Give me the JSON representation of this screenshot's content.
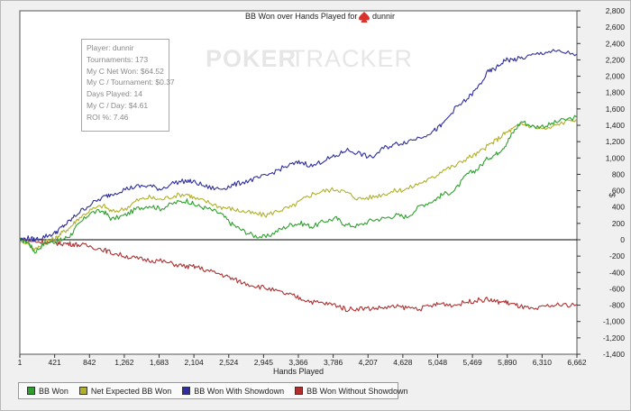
{
  "chart_data": {
    "type": "line",
    "title": "BB Won over Hands Played for",
    "title_user": "dunnir",
    "watermark": [
      "POKER",
      "TRACKER"
    ],
    "xlabel": "Hands Played",
    "ylabel": "",
    "x_ticks": [
      "1",
      "421",
      "842",
      "1,262",
      "1,683",
      "2,104",
      "2,524",
      "2,945",
      "3,366",
      "3,786",
      "4,207",
      "4,628",
      "5,048",
      "5,469",
      "5,890",
      "6,310",
      "6,662"
    ],
    "xlim": [
      1,
      6662
    ],
    "y_ticks": [
      "2,800",
      "2,600",
      "2,400",
      "2,200",
      "2,000",
      "1,800",
      "1,600",
      "1,400",
      "1,200",
      "1,000",
      "800",
      "600",
      "400",
      "200",
      "0",
      "-200",
      "-400",
      "-600",
      "-800",
      "-1,000",
      "-1,200",
      "-1,400"
    ],
    "ylim": [
      -1400,
      2800
    ],
    "y_unit": "$",
    "series": [
      {
        "name": "BB Won",
        "color": "#2ea02e",
        "x": [
          1,
          100,
          180,
          300,
          421,
          500,
          600,
          700,
          842,
          1000,
          1100,
          1262,
          1400,
          1550,
          1683,
          1850,
          2000,
          2104,
          2250,
          2400,
          2524,
          2650,
          2800,
          2945,
          3100,
          3250,
          3366,
          3500,
          3650,
          3786,
          3900,
          4050,
          4207,
          4350,
          4500,
          4628,
          4800,
          4950,
          5048,
          5200,
          5350,
          5469,
          5600,
          5700,
          5800,
          5890,
          6000,
          6150,
          6310,
          6450,
          6662
        ],
        "values": [
          0,
          -30,
          -150,
          -40,
          -20,
          0,
          50,
          180,
          330,
          350,
          250,
          300,
          380,
          420,
          380,
          450,
          480,
          420,
          380,
          320,
          200,
          120,
          50,
          30,
          120,
          190,
          200,
          160,
          230,
          260,
          180,
          170,
          240,
          260,
          300,
          280,
          420,
          480,
          550,
          600,
          800,
          860,
          1000,
          1050,
          1150,
          1300,
          1450,
          1380,
          1400,
          1450,
          1500
        ]
      },
      {
        "name": "Net Expected BB Won",
        "color": "#b0b02a",
        "x": [
          1,
          100,
          180,
          300,
          421,
          500,
          600,
          700,
          842,
          1000,
          1100,
          1262,
          1400,
          1550,
          1683,
          1850,
          2000,
          2104,
          2250,
          2400,
          2524,
          2650,
          2800,
          2945,
          3100,
          3250,
          3366,
          3500,
          3650,
          3786,
          3900,
          4050,
          4207,
          4350,
          4500,
          4628,
          4800,
          4950,
          5048,
          5200,
          5350,
          5469,
          5600,
          5700,
          5800,
          5890,
          6000,
          6150,
          6310,
          6450,
          6662
        ],
        "values": [
          0,
          -40,
          -130,
          -20,
          10,
          80,
          150,
          260,
          360,
          420,
          340,
          380,
          480,
          520,
          490,
          540,
          560,
          500,
          460,
          400,
          380,
          350,
          320,
          300,
          360,
          400,
          480,
          560,
          600,
          620,
          580,
          500,
          520,
          560,
          600,
          620,
          700,
          760,
          850,
          900,
          1000,
          1050,
          1150,
          1220,
          1300,
          1350,
          1420,
          1380,
          1350,
          1420,
          1480
        ]
      },
      {
        "name": "BB Won With Showdown",
        "color": "#2e2e9e",
        "x": [
          1,
          100,
          180,
          300,
          421,
          500,
          600,
          700,
          842,
          1000,
          1100,
          1262,
          1400,
          1550,
          1683,
          1850,
          2000,
          2104,
          2250,
          2400,
          2524,
          2650,
          2800,
          2945,
          3100,
          3250,
          3366,
          3500,
          3650,
          3786,
          3900,
          4050,
          4207,
          4350,
          4500,
          4628,
          4800,
          4950,
          5048,
          5200,
          5350,
          5469,
          5600,
          5700,
          5800,
          5890,
          6000,
          6150,
          6310,
          6450,
          6662
        ],
        "values": [
          0,
          20,
          0,
          40,
          80,
          150,
          230,
          330,
          430,
          520,
          560,
          620,
          650,
          660,
          620,
          700,
          720,
          700,
          640,
          620,
          660,
          700,
          740,
          780,
          860,
          920,
          950,
          900,
          980,
          1020,
          1100,
          1060,
          1000,
          1120,
          1170,
          1200,
          1260,
          1330,
          1400,
          1600,
          1720,
          1850,
          2050,
          2100,
          2200,
          2200,
          2220,
          2260,
          2300,
          2300,
          2270
        ]
      },
      {
        "name": "BB Won Without Showdown",
        "color": "#b03030",
        "x": [
          1,
          100,
          180,
          300,
          421,
          500,
          600,
          700,
          842,
          1000,
          1100,
          1262,
          1400,
          1550,
          1683,
          1850,
          2000,
          2104,
          2250,
          2400,
          2524,
          2650,
          2800,
          2945,
          3100,
          3250,
          3366,
          3500,
          3650,
          3786,
          3900,
          4050,
          4207,
          4350,
          4500,
          4628,
          4800,
          4950,
          5048,
          5200,
          5350,
          5469,
          5600,
          5700,
          5800,
          5890,
          6000,
          6150,
          6310,
          6450,
          6662
        ],
        "values": [
          0,
          -10,
          -20,
          -30,
          -40,
          -45,
          -50,
          -60,
          -80,
          -120,
          -160,
          -200,
          -230,
          -250,
          -260,
          -300,
          -330,
          -330,
          -380,
          -420,
          -470,
          -520,
          -560,
          -590,
          -640,
          -680,
          -720,
          -760,
          -780,
          -800,
          -850,
          -840,
          -840,
          -830,
          -820,
          -830,
          -840,
          -800,
          -780,
          -800,
          -760,
          -740,
          -730,
          -760,
          -760,
          -790,
          -820,
          -860,
          -810,
          -800,
          -790
        ]
      }
    ]
  },
  "stats_box": [
    {
      "label": "Player:",
      "value": "dunnir"
    },
    {
      "label": "Tournaments:",
      "value": "173"
    },
    {
      "label": "My C Net Won:",
      "value": "$64.52"
    },
    {
      "label": "My C / Tournament:",
      "value": "$0.37"
    },
    {
      "label": "Days Played:",
      "value": "14"
    },
    {
      "label": "My C / Day:",
      "value": "$4.61"
    },
    {
      "label": "ROI %:",
      "value": "7.46"
    }
  ]
}
